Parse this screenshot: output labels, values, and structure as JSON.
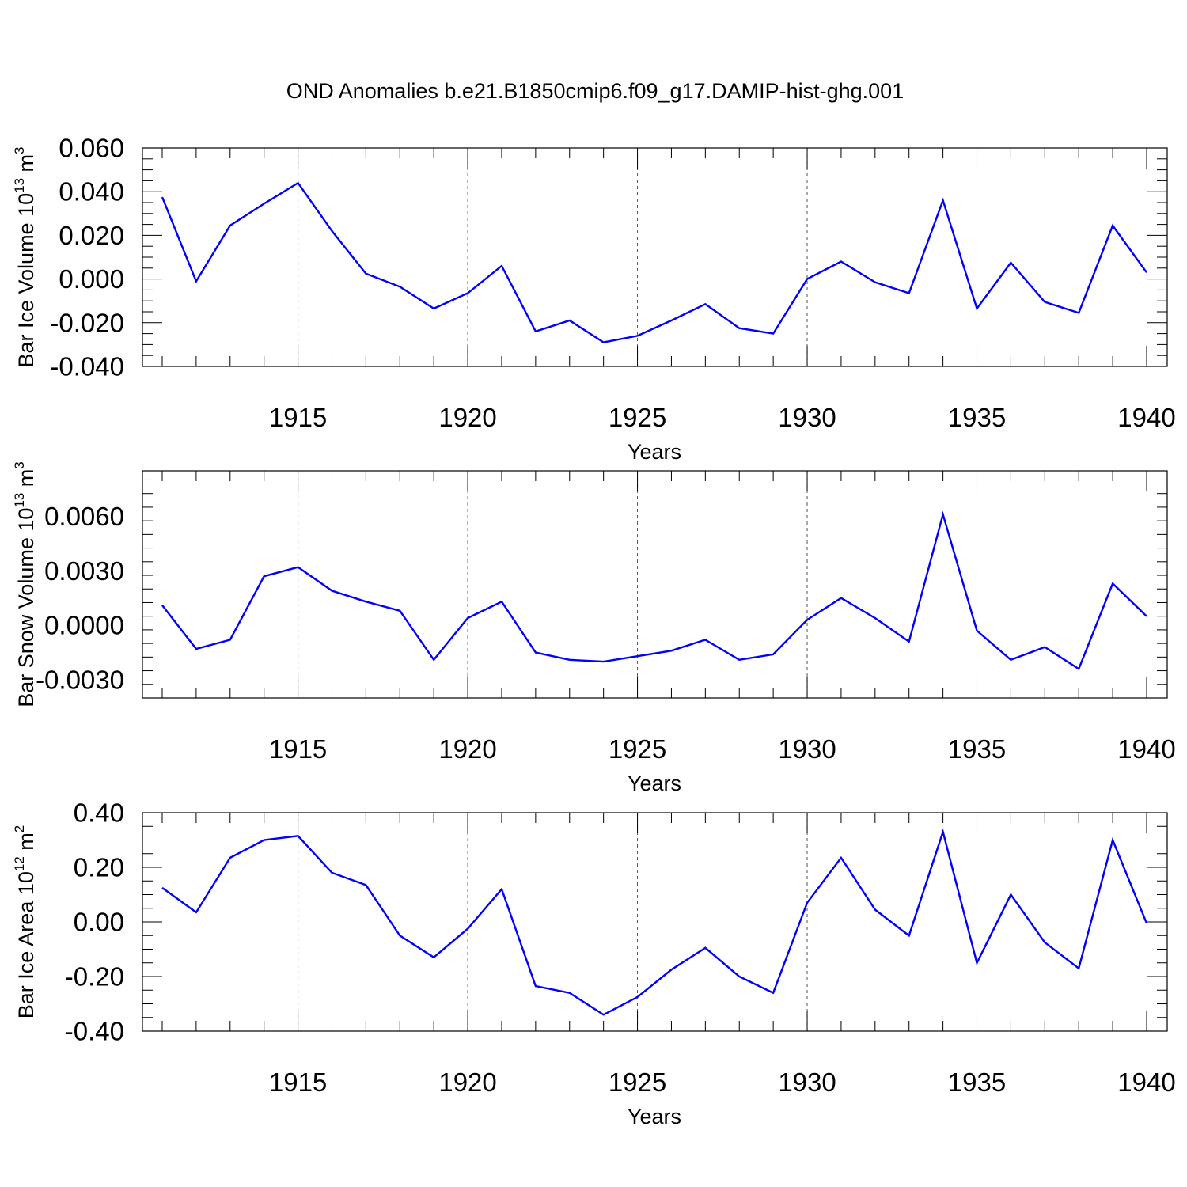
{
  "title": "OND Anomalies b.e21.B1850cmip6.f09_g17.DAMIP-hist-ghg.001",
  "colors": {
    "line": "#0000ff",
    "axis": "#000000",
    "grid": "#555555",
    "background": "#ffffff"
  },
  "chart_data": [
    {
      "type": "line",
      "title": "OND Anomalies b.e21.B1850cmip6.f09_g17.DAMIP-hist-ghg.001",
      "xlabel": "Years",
      "ylabel": {
        "prefix": "Bar Ice Volume 10",
        "exp": "13",
        "unit": " m",
        "unit_exp": "3"
      },
      "xlim": [
        1911,
        1940
      ],
      "ylim": [
        -0.04,
        0.06
      ],
      "xticks": [
        1915,
        1920,
        1925,
        1930,
        1935,
        1940
      ],
      "xtick_labels": [
        "1915",
        "1920",
        "1925",
        "1930",
        "1935",
        "1940"
      ],
      "yticks": [
        -0.04,
        -0.02,
        0.0,
        0.02,
        0.04,
        0.06
      ],
      "ytick_labels": [
        "-0.040",
        "-0.020",
        "0.000",
        "0.020",
        "0.040",
        "0.060"
      ],
      "y_minor_step": 0.005,
      "grid": "vertical dashed at major x ticks",
      "x": [
        1911,
        1912,
        1913,
        1914,
        1915,
        1916,
        1917,
        1918,
        1919,
        1920,
        1921,
        1922,
        1923,
        1924,
        1925,
        1926,
        1927,
        1928,
        1929,
        1930,
        1931,
        1932,
        1933,
        1934,
        1935,
        1936,
        1937,
        1938,
        1939,
        1940
      ],
      "series": [
        {
          "name": "Bar Ice Volume",
          "values": [
            0.0375,
            -0.001,
            0.0245,
            0.0345,
            0.044,
            0.022,
            0.0025,
            -0.0035,
            -0.0135,
            -0.0065,
            0.006,
            -0.024,
            -0.019,
            -0.029,
            -0.026,
            -0.019,
            -0.0115,
            -0.0225,
            -0.025,
            0.0,
            0.008,
            -0.0015,
            -0.0065,
            0.036,
            -0.0135,
            0.0075,
            -0.0105,
            -0.0155,
            0.0245,
            0.003
          ]
        }
      ]
    },
    {
      "type": "line",
      "xlabel": "Years",
      "ylabel": {
        "prefix": "Bar Snow Volume 10",
        "exp": "13",
        "unit": " m",
        "unit_exp": "3"
      },
      "xlim": [
        1911,
        1940
      ],
      "ylim": [
        -0.004,
        0.0085
      ],
      "xticks": [
        1915,
        1920,
        1925,
        1930,
        1935,
        1940
      ],
      "xtick_labels": [
        "1915",
        "1920",
        "1925",
        "1930",
        "1935",
        "1940"
      ],
      "yticks": [
        -0.003,
        0.0,
        0.003,
        0.006
      ],
      "ytick_labels": [
        "-0.0030",
        "0.0000",
        "0.0030",
        "0.0060"
      ],
      "y_minor_step": 0.00075,
      "grid": "vertical dashed at major x ticks",
      "x": [
        1911,
        1912,
        1913,
        1914,
        1915,
        1916,
        1917,
        1918,
        1919,
        1920,
        1921,
        1922,
        1923,
        1924,
        1925,
        1926,
        1927,
        1928,
        1929,
        1930,
        1931,
        1932,
        1933,
        1934,
        1935,
        1936,
        1937,
        1938,
        1939,
        1940
      ],
      "series": [
        {
          "name": "Bar Snow Volume",
          "values": [
            0.0011,
            -0.0013,
            -0.0008,
            0.0027,
            0.0032,
            0.0019,
            0.0013,
            0.0008,
            -0.0019,
            0.0004,
            0.0013,
            -0.0015,
            -0.0019,
            -0.002,
            -0.0017,
            -0.0014,
            -0.0008,
            -0.0019,
            -0.0016,
            0.0003,
            0.0015,
            0.0004,
            -0.0009,
            0.0061,
            -0.0003,
            -0.0019,
            -0.0012,
            -0.0024,
            0.0023,
            0.0005
          ]
        }
      ]
    },
    {
      "type": "line",
      "xlabel": "Years",
      "ylabel": {
        "prefix": "Bar Ice Area 10",
        "exp": "12",
        "unit": " m",
        "unit_exp": "2"
      },
      "xlim": [
        1911,
        1940
      ],
      "ylim": [
        -0.4,
        0.4
      ],
      "xticks": [
        1915,
        1920,
        1925,
        1930,
        1935,
        1940
      ],
      "xtick_labels": [
        "1915",
        "1920",
        "1925",
        "1930",
        "1935",
        "1940"
      ],
      "yticks": [
        -0.4,
        -0.2,
        0.0,
        0.2,
        0.4
      ],
      "ytick_labels": [
        "-0.40",
        "-0.20",
        "0.00",
        "0.20",
        "0.40"
      ],
      "y_minor_step": 0.05,
      "grid": "vertical dashed at major x ticks",
      "x": [
        1911,
        1912,
        1913,
        1914,
        1915,
        1916,
        1917,
        1918,
        1919,
        1920,
        1921,
        1922,
        1923,
        1924,
        1925,
        1926,
        1927,
        1928,
        1929,
        1930,
        1931,
        1932,
        1933,
        1934,
        1935,
        1936,
        1937,
        1938,
        1939,
        1940
      ],
      "series": [
        {
          "name": "Bar Ice Area",
          "values": [
            0.125,
            0.035,
            0.235,
            0.3,
            0.315,
            0.18,
            0.135,
            -0.05,
            -0.13,
            -0.025,
            0.12,
            -0.235,
            -0.26,
            -0.34,
            -0.275,
            -0.175,
            -0.095,
            -0.2,
            -0.26,
            0.07,
            0.235,
            0.045,
            -0.05,
            0.33,
            -0.15,
            0.1,
            -0.075,
            -0.17,
            0.3,
            -0.005
          ]
        }
      ]
    }
  ]
}
